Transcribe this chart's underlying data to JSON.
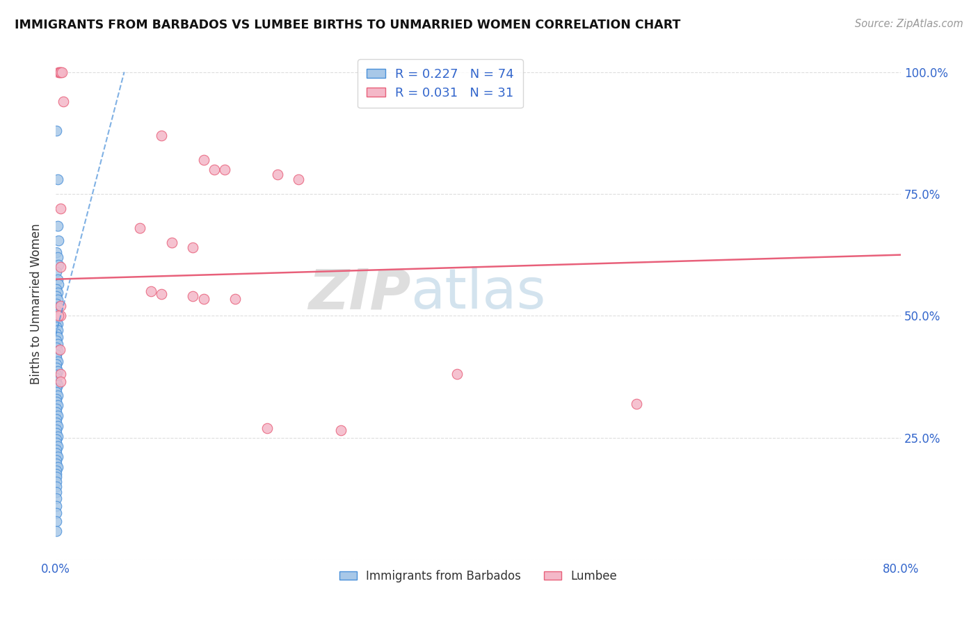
{
  "title": "IMMIGRANTS FROM BARBADOS VS LUMBEE BIRTHS TO UNMARRIED WOMEN CORRELATION CHART",
  "source": "Source: ZipAtlas.com",
  "ylabel": "Births to Unmarried Women",
  "legend_blue_r": "0.227",
  "legend_blue_n": "74",
  "legend_pink_r": "0.031",
  "legend_pink_n": "31",
  "blue_color": "#a8c8e8",
  "pink_color": "#f4b8c8",
  "trend_blue_color": "#4a90d9",
  "trend_pink_color": "#e8607a",
  "watermark_zip": "ZIP",
  "watermark_atlas": "atlas",
  "blue_scatter": [
    [
      0.001,
      0.88
    ],
    [
      0.002,
      0.78
    ],
    [
      0.002,
      0.685
    ],
    [
      0.003,
      0.655
    ],
    [
      0.001,
      0.63
    ],
    [
      0.002,
      0.62
    ],
    [
      0.003,
      0.605
    ],
    [
      0.001,
      0.59
    ],
    [
      0.002,
      0.575
    ],
    [
      0.003,
      0.565
    ],
    [
      0.001,
      0.555
    ],
    [
      0.002,
      0.548
    ],
    [
      0.001,
      0.54
    ],
    [
      0.002,
      0.533
    ],
    [
      0.001,
      0.525
    ],
    [
      0.002,
      0.517
    ],
    [
      0.001,
      0.51
    ],
    [
      0.002,
      0.503
    ],
    [
      0.001,
      0.497
    ],
    [
      0.001,
      0.49
    ],
    [
      0.002,
      0.483
    ],
    [
      0.001,
      0.477
    ],
    [
      0.002,
      0.47
    ],
    [
      0.001,
      0.463
    ],
    [
      0.002,
      0.456
    ],
    [
      0.001,
      0.449
    ],
    [
      0.002,
      0.442
    ],
    [
      0.001,
      0.435
    ],
    [
      0.002,
      0.428
    ],
    [
      0.001,
      0.421
    ],
    [
      0.001,
      0.414
    ],
    [
      0.002,
      0.407
    ],
    [
      0.001,
      0.4
    ],
    [
      0.001,
      0.393
    ],
    [
      0.002,
      0.386
    ],
    [
      0.001,
      0.379
    ],
    [
      0.001,
      0.372
    ],
    [
      0.001,
      0.365
    ],
    [
      0.002,
      0.358
    ],
    [
      0.001,
      0.351
    ],
    [
      0.001,
      0.344
    ],
    [
      0.002,
      0.337
    ],
    [
      0.001,
      0.33
    ],
    [
      0.001,
      0.323
    ],
    [
      0.002,
      0.316
    ],
    [
      0.001,
      0.309
    ],
    [
      0.001,
      0.302
    ],
    [
      0.002,
      0.295
    ],
    [
      0.001,
      0.288
    ],
    [
      0.001,
      0.281
    ],
    [
      0.002,
      0.274
    ],
    [
      0.001,
      0.267
    ],
    [
      0.001,
      0.26
    ],
    [
      0.002,
      0.253
    ],
    [
      0.001,
      0.246
    ],
    [
      0.001,
      0.239
    ],
    [
      0.002,
      0.232
    ],
    [
      0.001,
      0.225
    ],
    [
      0.001,
      0.218
    ],
    [
      0.002,
      0.211
    ],
    [
      0.001,
      0.204
    ],
    [
      0.001,
      0.197
    ],
    [
      0.002,
      0.19
    ],
    [
      0.001,
      0.183
    ],
    [
      0.001,
      0.176
    ],
    [
      0.001,
      0.169
    ],
    [
      0.001,
      0.16
    ],
    [
      0.001,
      0.15
    ],
    [
      0.001,
      0.138
    ],
    [
      0.001,
      0.125
    ],
    [
      0.001,
      0.11
    ],
    [
      0.001,
      0.095
    ],
    [
      0.001,
      0.078
    ],
    [
      0.001,
      0.058
    ]
  ],
  "pink_scatter": [
    [
      0.003,
      1.0
    ],
    [
      0.004,
      1.0
    ],
    [
      0.005,
      1.0
    ],
    [
      0.006,
      1.0
    ],
    [
      0.007,
      0.94
    ],
    [
      0.1,
      0.87
    ],
    [
      0.14,
      0.82
    ],
    [
      0.15,
      0.8
    ],
    [
      0.16,
      0.8
    ],
    [
      0.21,
      0.79
    ],
    [
      0.23,
      0.78
    ],
    [
      0.005,
      0.72
    ],
    [
      0.08,
      0.68
    ],
    [
      0.11,
      0.65
    ],
    [
      0.13,
      0.64
    ],
    [
      0.005,
      0.6
    ],
    [
      0.09,
      0.55
    ],
    [
      0.1,
      0.545
    ],
    [
      0.13,
      0.54
    ],
    [
      0.14,
      0.535
    ],
    [
      0.17,
      0.535
    ],
    [
      0.005,
      0.52
    ],
    [
      0.005,
      0.5
    ],
    [
      0.004,
      0.43
    ],
    [
      0.38,
      0.38
    ],
    [
      0.005,
      0.38
    ],
    [
      0.005,
      0.365
    ],
    [
      0.2,
      0.27
    ],
    [
      0.55,
      0.32
    ],
    [
      0.27,
      0.265
    ],
    [
      0.003,
      0.5
    ]
  ],
  "xlim": [
    0.0,
    0.8
  ],
  "ylim": [
    0.0,
    1.05
  ],
  "xticks": [
    0.0,
    0.1,
    0.2,
    0.3,
    0.4,
    0.5,
    0.6,
    0.7,
    0.8
  ],
  "xtick_labels": [
    "0.0%",
    "",
    "",
    "",
    "",
    "",
    "",
    "",
    "80.0%"
  ],
  "ytick_vals": [
    0.0,
    0.25,
    0.5,
    0.75,
    1.0
  ],
  "ytick_labels_right": [
    "",
    "25.0%",
    "50.0%",
    "75.0%",
    "100.0%"
  ],
  "grid_color": "#dddddd",
  "background_color": "#ffffff",
  "pink_trend_x0": 0.0,
  "pink_trend_y0": 0.575,
  "pink_trend_x1": 0.8,
  "pink_trend_y1": 0.625,
  "blue_trend_x0": 0.0,
  "blue_trend_y0": 0.46,
  "blue_trend_x1": 0.065,
  "blue_trend_y1": 1.0
}
